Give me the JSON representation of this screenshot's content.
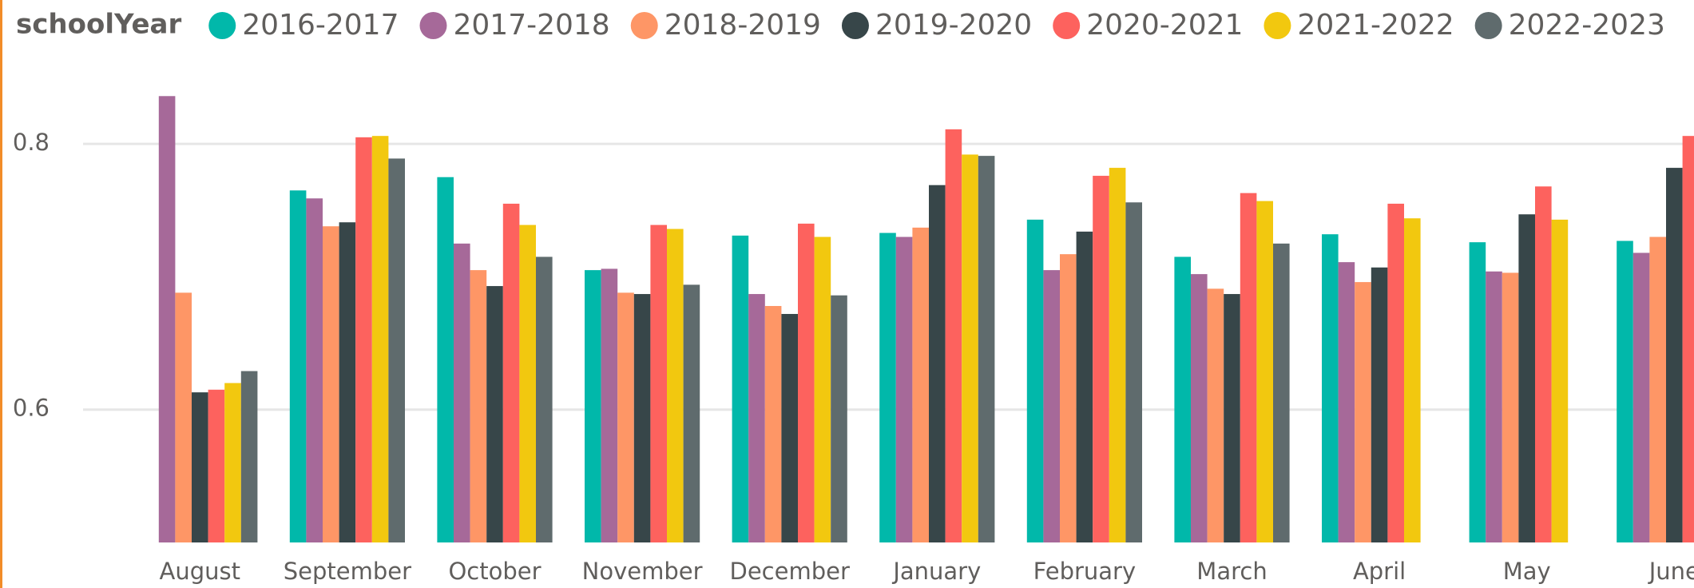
{
  "chart_data": {
    "type": "bar",
    "legend_title": "schoolYear",
    "categories": [
      "August",
      "September",
      "October",
      "November",
      "December",
      "January",
      "February",
      "March",
      "April",
      "May",
      "June"
    ],
    "series": [
      {
        "name": "2016-2017",
        "color": "#01B8AA",
        "values": [
          null,
          0.765,
          0.775,
          0.705,
          0.731,
          0.733,
          0.743,
          0.715,
          0.732,
          0.726,
          0.727
        ]
      },
      {
        "name": "2017-2018",
        "color": "#A66999",
        "values": [
          0.836,
          0.759,
          0.725,
          0.706,
          0.687,
          0.73,
          0.705,
          0.702,
          0.711,
          0.704,
          0.718
        ]
      },
      {
        "name": "2018-2019",
        "color": "#FE9666",
        "values": [
          0.688,
          0.738,
          0.705,
          0.688,
          0.678,
          0.737,
          0.717,
          0.691,
          0.696,
          0.703,
          0.73
        ]
      },
      {
        "name": "2019-2020",
        "color": "#374649",
        "values": [
          0.613,
          0.741,
          0.693,
          0.687,
          0.672,
          0.769,
          0.734,
          0.687,
          0.707,
          0.747,
          0.782
        ]
      },
      {
        "name": "2020-2021",
        "color": "#FD625E",
        "values": [
          0.615,
          0.805,
          0.755,
          0.739,
          0.74,
          0.811,
          0.776,
          0.763,
          0.755,
          0.768,
          0.806
        ]
      },
      {
        "name": "2021-2022",
        "color": "#F2C80F",
        "values": [
          0.62,
          0.806,
          0.739,
          0.736,
          0.73,
          0.792,
          0.782,
          0.757,
          0.744,
          0.743,
          null
        ]
      },
      {
        "name": "2022-2023",
        "color": "#5F6B6D",
        "values": [
          0.629,
          0.789,
          0.715,
          0.694,
          0.686,
          0.791,
          0.756,
          0.725,
          null,
          null,
          null
        ]
      }
    ],
    "ylim": [
      0.5,
      0.85
    ],
    "yticks": [
      0.6,
      0.8
    ],
    "grid": true,
    "legend": "top"
  }
}
